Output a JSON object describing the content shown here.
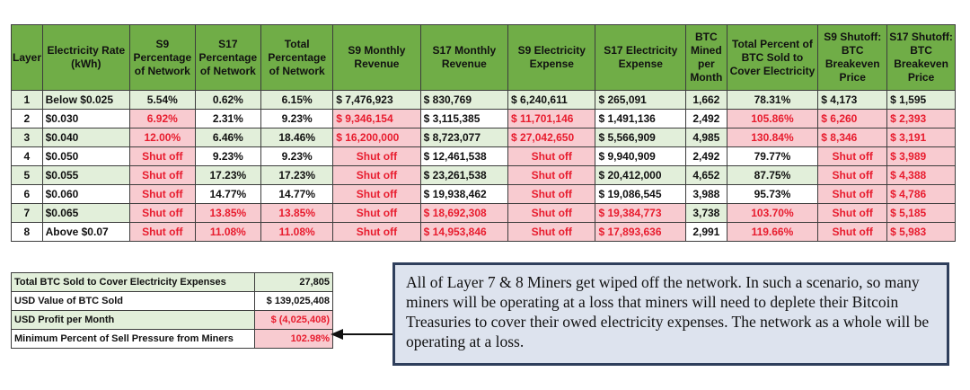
{
  "headers": [
    "Layer",
    "Electricity Rate (kWh)",
    "S9 Percentage of Network",
    "S17 Percentage of Network",
    "Total Percentage of Network",
    "S9 Monthly Revenue",
    "S17 Monthly Revenue",
    "S9 Electricity Expense",
    "S17 Electricity Expense",
    "BTC Mined per Month",
    "Total Percent of BTC Sold to Cover Electricity",
    "S9 Shutoff: BTC Breakeven Price",
    "S17 Shutoff: BTC Breakeven Price"
  ],
  "rows": [
    {
      "layer": "1",
      "rate": "Below $0.025",
      "s9_pct": "5.54%",
      "s17_pct": "0.62%",
      "total_pct": "6.15%",
      "s9_rev": "$ 7,476,923",
      "s17_rev": "$ 830,769",
      "s9_exp": "$ 6,240,611",
      "s17_exp": "$ 265,091",
      "btc_mined": "1,662",
      "pct_sold": "78.31%",
      "s9_be": "$ 4,173",
      "s17_be": "$ 1,595"
    },
    {
      "layer": "2",
      "rate": "$0.030",
      "s9_pct": "6.92%",
      "s17_pct": "2.31%",
      "total_pct": "9.23%",
      "s9_rev": "$ 9,346,154",
      "s17_rev": "$ 3,115,385",
      "s9_exp": "$ 11,701,146",
      "s17_exp": "$ 1,491,136",
      "btc_mined": "2,492",
      "pct_sold": "105.86%",
      "s9_be": "$ 6,260",
      "s17_be": "$ 2,393"
    },
    {
      "layer": "3",
      "rate": "$0.040",
      "s9_pct": "12.00%",
      "s17_pct": "6.46%",
      "total_pct": "18.46%",
      "s9_rev": "$ 16,200,000",
      "s17_rev": "$ 8,723,077",
      "s9_exp": "$ 27,042,650",
      "s17_exp": "$ 5,566,909",
      "btc_mined": "4,985",
      "pct_sold": "130.84%",
      "s9_be": "$ 8,346",
      "s17_be": "$ 3,191"
    },
    {
      "layer": "4",
      "rate": "$0.050",
      "s9_pct": "Shut off",
      "s17_pct": "9.23%",
      "total_pct": "9.23%",
      "s9_rev": "Shut off",
      "s17_rev": "$ 12,461,538",
      "s9_exp": "Shut off",
      "s17_exp": "$ 9,940,909",
      "btc_mined": "2,492",
      "pct_sold": "79.77%",
      "s9_be": "Shut off",
      "s17_be": "$ 3,989"
    },
    {
      "layer": "5",
      "rate": "$0.055",
      "s9_pct": "Shut off",
      "s17_pct": "17.23%",
      "total_pct": "17.23%",
      "s9_rev": "Shut off",
      "s17_rev": "$ 23,261,538",
      "s9_exp": "Shut off",
      "s17_exp": "$ 20,412,000",
      "btc_mined": "4,652",
      "pct_sold": "87.75%",
      "s9_be": "Shut off",
      "s17_be": "$ 4,388"
    },
    {
      "layer": "6",
      "rate": "$0.060",
      "s9_pct": "Shut off",
      "s17_pct": "14.77%",
      "total_pct": "14.77%",
      "s9_rev": "Shut off",
      "s17_rev": "$ 19,938,462",
      "s9_exp": "Shut off",
      "s17_exp": "$ 19,086,545",
      "btc_mined": "3,988",
      "pct_sold": "95.73%",
      "s9_be": "Shut off",
      "s17_be": "$ 4,786"
    },
    {
      "layer": "7",
      "rate": "$0.065",
      "s9_pct": "Shut off",
      "s17_pct": "13.85%",
      "total_pct": "13.85%",
      "s9_rev": "Shut off",
      "s17_rev": "$ 18,692,308",
      "s9_exp": "Shut off",
      "s17_exp": "$ 19,384,773",
      "btc_mined": "3,738",
      "pct_sold": "103.70%",
      "s9_be": "Shut off",
      "s17_be": "$ 5,185"
    },
    {
      "layer": "8",
      "rate": "Above $0.07",
      "s9_pct": "Shut off",
      "s17_pct": "11.08%",
      "total_pct": "11.08%",
      "s9_rev": "Shut off",
      "s17_rev": "$ 14,953,846",
      "s9_exp": "Shut off",
      "s17_exp": "$ 17,893,636",
      "btc_mined": "2,991",
      "pct_sold": "119.66%",
      "s9_be": "Shut off",
      "s17_be": "$ 5,983"
    }
  ],
  "summary": [
    {
      "label": "Total BTC Sold to Cover Electricity Expenses",
      "value": "27,805"
    },
    {
      "label": "USD Value of BTC Sold",
      "value": "$ 139,025,408"
    },
    {
      "label": "USD Profit per Month",
      "value": "$ (4,025,408)"
    },
    {
      "label": "Minimum Percent of Sell Pressure from Miners",
      "value": "102.98%"
    }
  ],
  "callout_text": "All of Layer 7 & 8 Miners get wiped off the network. In such a scenario, so many miners will be operating at a loss that miners will need to deplete their Bitcoin Treasuries to cover their owed electricity expenses. The network as a whole will be operating at a loss.",
  "colors": {
    "header_green": "#70ad47",
    "row_light_green": "#e2efda",
    "highlight_pink": "#f8cbd0",
    "highlight_red_text": "#e81c2e",
    "callout_bg": "#dde3ee",
    "callout_border": "#2f3f5c"
  }
}
